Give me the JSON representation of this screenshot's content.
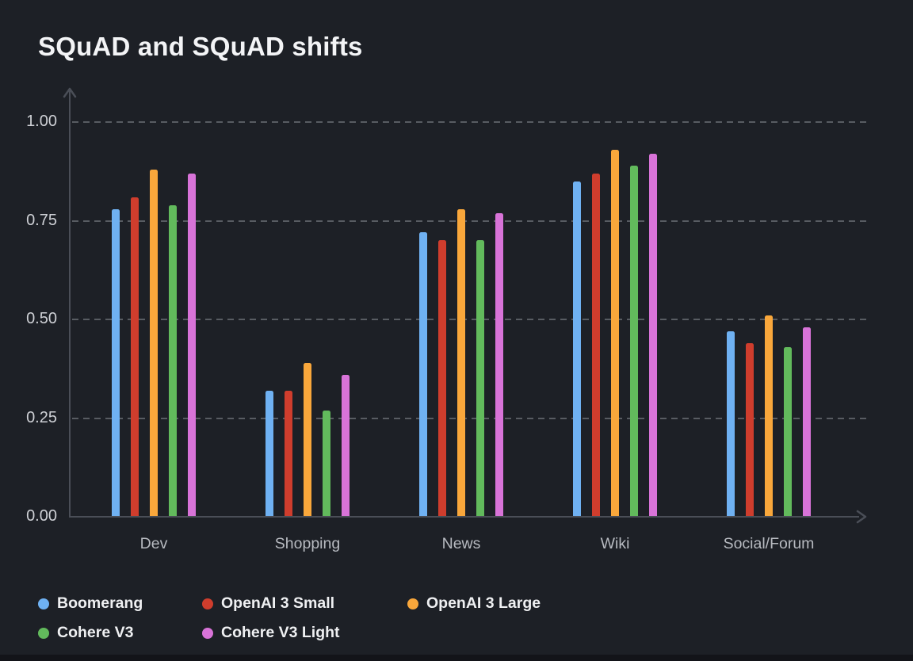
{
  "title": "SQuAD and SQuAD shifts",
  "chart_data": {
    "type": "bar",
    "categories": [
      "Dev",
      "Shopping",
      "News",
      "Wiki",
      "Social/Forum"
    ],
    "series": [
      {
        "name": "Boomerang",
        "color": "#6fb1f2",
        "values": [
          0.78,
          0.32,
          0.72,
          0.85,
          0.47
        ]
      },
      {
        "name": "OpenAI 3 Small",
        "color": "#cf3d2d",
        "values": [
          0.81,
          0.32,
          0.7,
          0.87,
          0.44
        ]
      },
      {
        "name": "OpenAI 3 Large",
        "color": "#f9a73b",
        "values": [
          0.88,
          0.39,
          0.78,
          0.93,
          0.51
        ]
      },
      {
        "name": "Cohere V3",
        "color": "#62ba5c",
        "values": [
          0.79,
          0.27,
          0.7,
          0.89,
          0.43
        ]
      },
      {
        "name": "Cohere V3 Light",
        "color": "#d873d8",
        "values": [
          0.87,
          0.36,
          0.77,
          0.92,
          0.48
        ]
      }
    ],
    "ylim": [
      0,
      1.0
    ],
    "yticks": [
      0,
      0.25,
      0.5,
      0.75,
      1.0
    ],
    "ytick_labels": [
      "0.00",
      "0.25",
      "0.50",
      "0.75",
      "1.00"
    ],
    "grid": "horizontal-dashed",
    "legend_position": "bottom-left"
  },
  "colors": {
    "background": "#1d2026",
    "axis": "#4a4e57",
    "title_text": "#f3f4f6",
    "tick_text": "#ced0d5",
    "category_text": "#b7bac0",
    "legend_text": "#eff0f2",
    "footer_strip": "#131419"
  }
}
